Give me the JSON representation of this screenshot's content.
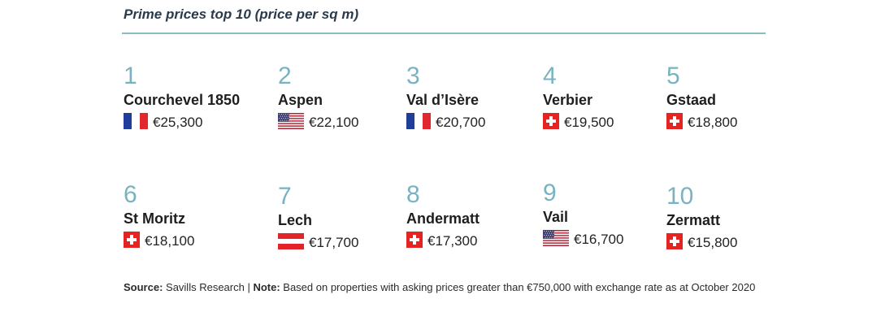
{
  "title": "Prime prices top 10 (price per sq m)",
  "items": [
    {
      "rank": "1",
      "name": "Courchevel 1850",
      "country": "france-flag",
      "price": "€25,300"
    },
    {
      "rank": "2",
      "name": "Aspen",
      "country": "usa-flag",
      "price": "€22,100"
    },
    {
      "rank": "3",
      "name": "Val d’Isère",
      "country": "france-flag",
      "price": "€20,700"
    },
    {
      "rank": "4",
      "name": "Verbier",
      "country": "switzerland-flag",
      "price": "€19,500"
    },
    {
      "rank": "5",
      "name": "Gstaad",
      "country": "switzerland-flag",
      "price": "€18,800"
    },
    {
      "rank": "6",
      "name": "St Moritz",
      "country": "switzerland-flag",
      "price": "€18,100"
    },
    {
      "rank": "7",
      "name": "Lech",
      "country": "austria-flag",
      "price": "€17,700"
    },
    {
      "rank": "8",
      "name": "Andermatt",
      "country": "switzerland-flag",
      "price": "€17,300"
    },
    {
      "rank": "9",
      "name": "Vail",
      "country": "usa-flag",
      "price": "€16,700"
    },
    {
      "rank": "10",
      "name": "Zermatt",
      "country": "switzerland-flag",
      "price": "€15,800"
    }
  ],
  "footer": {
    "source_label": "Source:",
    "source_text": " Savills Research | ",
    "note_label": "Note:",
    "note_text": " Based on properties with asking prices greater than €750,000 with exchange rate as at October 2020"
  },
  "colors": {
    "rank": "#79b3c1",
    "rule": "#8cbcc3",
    "swiss_red": "#e52421",
    "french_blue": "#1f3d99",
    "french_red": "#e0282e",
    "austria_red": "#e2232a",
    "us_blue": "#3c3b6e",
    "us_red": "#b22234"
  }
}
